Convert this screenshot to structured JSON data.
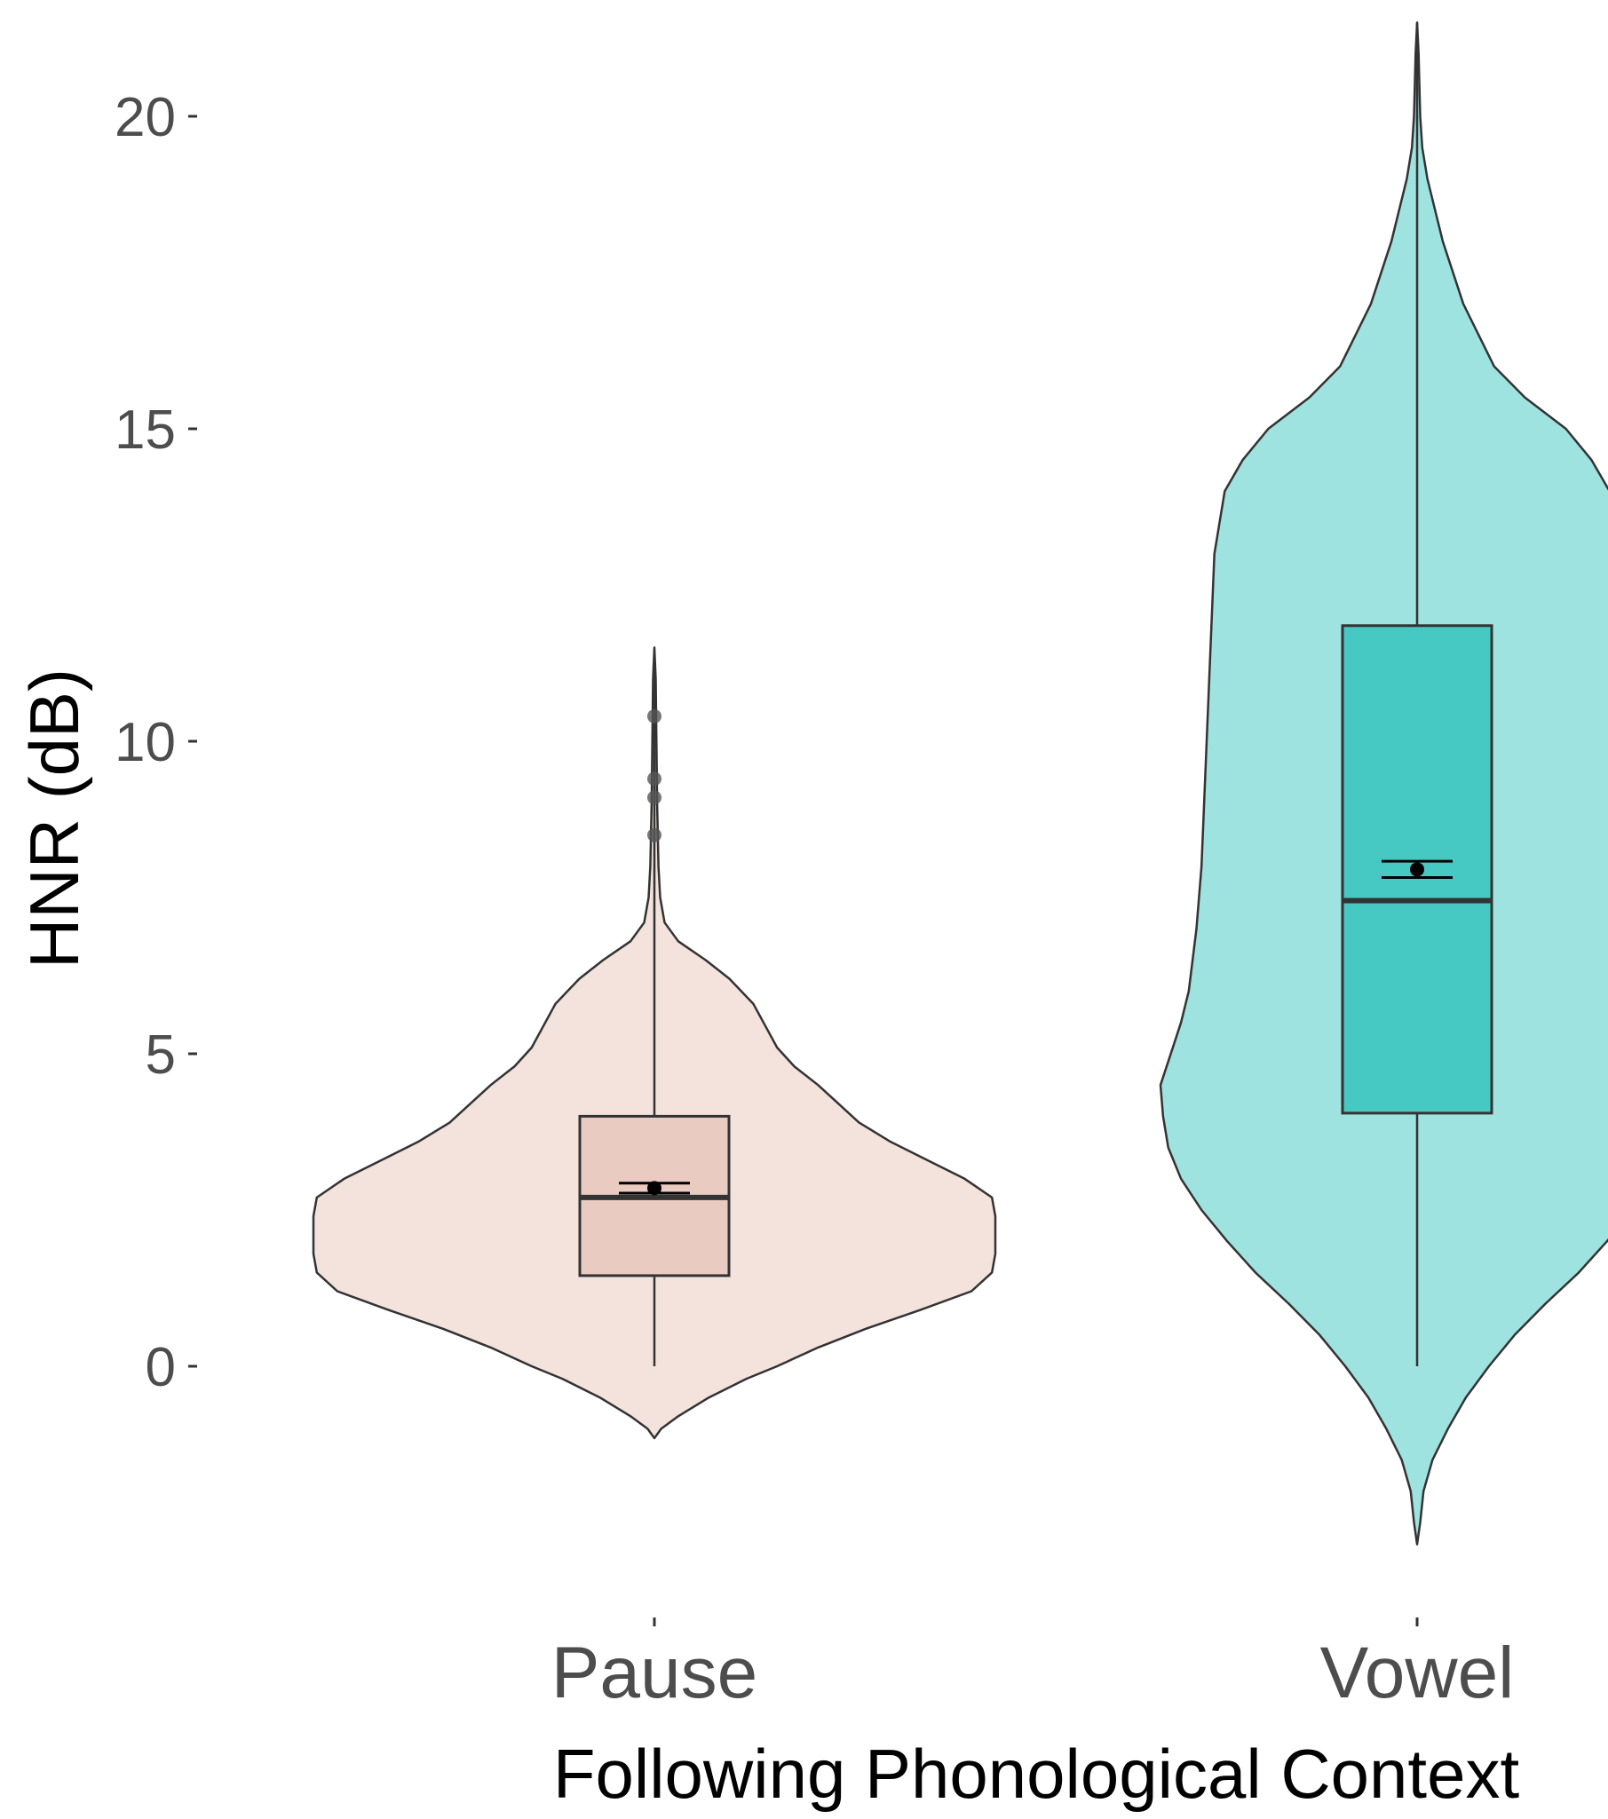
{
  "chart_data": {
    "type": "violin",
    "xlabel": "Following Phonological Context",
    "ylabel": "HNR (dB)",
    "ylim": [
      -3.1,
      21.5
    ],
    "yticks": [
      0,
      5,
      10,
      15,
      20
    ],
    "categories": [
      "Pause",
      "Vowel"
    ],
    "grid": false,
    "legend": "none",
    "groups": [
      {
        "category": "Pause",
        "fill": "#f4e3dd",
        "box_fill": "#eacbc1",
        "violin": {
          "min": -1.15,
          "max": 11.5,
          "profile": [
            [
              -1.15,
              0.0
            ],
            [
              -1.0,
              0.02
            ],
            [
              -0.8,
              0.07
            ],
            [
              -0.5,
              0.16
            ],
            [
              -0.2,
              0.27
            ],
            [
              0.0,
              0.36
            ],
            [
              0.3,
              0.48
            ],
            [
              0.6,
              0.62
            ],
            [
              0.9,
              0.78
            ],
            [
              1.2,
              0.93
            ],
            [
              1.5,
              0.99
            ],
            [
              1.8,
              1.0
            ],
            [
              2.1,
              1.0
            ],
            [
              2.4,
              1.0
            ],
            [
              2.7,
              0.99
            ],
            [
              3.0,
              0.91
            ],
            [
              3.3,
              0.8
            ],
            [
              3.6,
              0.69
            ],
            [
              3.9,
              0.6
            ],
            [
              4.2,
              0.54
            ],
            [
              4.5,
              0.48
            ],
            [
              4.8,
              0.41
            ],
            [
              5.1,
              0.36
            ],
            [
              5.4,
              0.33
            ],
            [
              5.8,
              0.29
            ],
            [
              6.2,
              0.22
            ],
            [
              6.5,
              0.15
            ],
            [
              6.8,
              0.07
            ],
            [
              7.1,
              0.03
            ],
            [
              7.5,
              0.017
            ],
            [
              8.0,
              0.012
            ],
            [
              9.0,
              0.008
            ],
            [
              10.0,
              0.006
            ],
            [
              11.0,
              0.004
            ],
            [
              11.5,
              0.0
            ]
          ]
        },
        "box": {
          "whisker_low": 0.0,
          "q1": 1.45,
          "median": 2.7,
          "q3": 4.0,
          "whisker_high": 11.4
        },
        "outliers": [
          8.5,
          9.1,
          9.4,
          10.4
        ],
        "mean": 2.85,
        "mean_ci": [
          2.77,
          2.93
        ]
      },
      {
        "category": "Vowel",
        "fill": "#9ee3df",
        "box_fill": "#47c9c3",
        "violin": {
          "min": -2.85,
          "max": 21.5,
          "profile": [
            [
              -2.85,
              0.0
            ],
            [
              -2.5,
              0.012
            ],
            [
              -2.0,
              0.025
            ],
            [
              -1.5,
              0.06
            ],
            [
              -1.0,
              0.12
            ],
            [
              -0.5,
              0.19
            ],
            [
              0.0,
              0.28
            ],
            [
              0.5,
              0.38
            ],
            [
              1.0,
              0.5
            ],
            [
              1.5,
              0.63
            ],
            [
              2.0,
              0.74
            ],
            [
              2.5,
              0.84
            ],
            [
              3.0,
              0.92
            ],
            [
              3.5,
              0.97
            ],
            [
              4.0,
              0.99
            ],
            [
              4.5,
              1.0
            ],
            [
              5.0,
              0.96
            ],
            [
              5.5,
              0.92
            ],
            [
              6.0,
              0.89
            ],
            [
              7.0,
              0.86
            ],
            [
              8.0,
              0.84
            ],
            [
              9.0,
              0.83
            ],
            [
              10.0,
              0.82
            ],
            [
              11.0,
              0.81
            ],
            [
              12.0,
              0.8
            ],
            [
              13.0,
              0.79
            ],
            [
              14.0,
              0.75
            ],
            [
              14.5,
              0.68
            ],
            [
              15.0,
              0.58
            ],
            [
              15.5,
              0.42
            ],
            [
              16.0,
              0.3
            ],
            [
              17.0,
              0.18
            ],
            [
              18.0,
              0.1
            ],
            [
              19.0,
              0.04
            ],
            [
              19.5,
              0.02
            ],
            [
              20.0,
              0.012
            ],
            [
              21.0,
              0.006
            ],
            [
              21.5,
              0.0
            ]
          ]
        },
        "box": {
          "whisker_low": 0.0,
          "q1": 4.05,
          "median": 7.45,
          "q3": 11.85,
          "whisker_high": 21.5
        },
        "outliers": [],
        "mean": 7.95,
        "mean_ci": [
          7.82,
          8.08
        ]
      }
    ]
  }
}
